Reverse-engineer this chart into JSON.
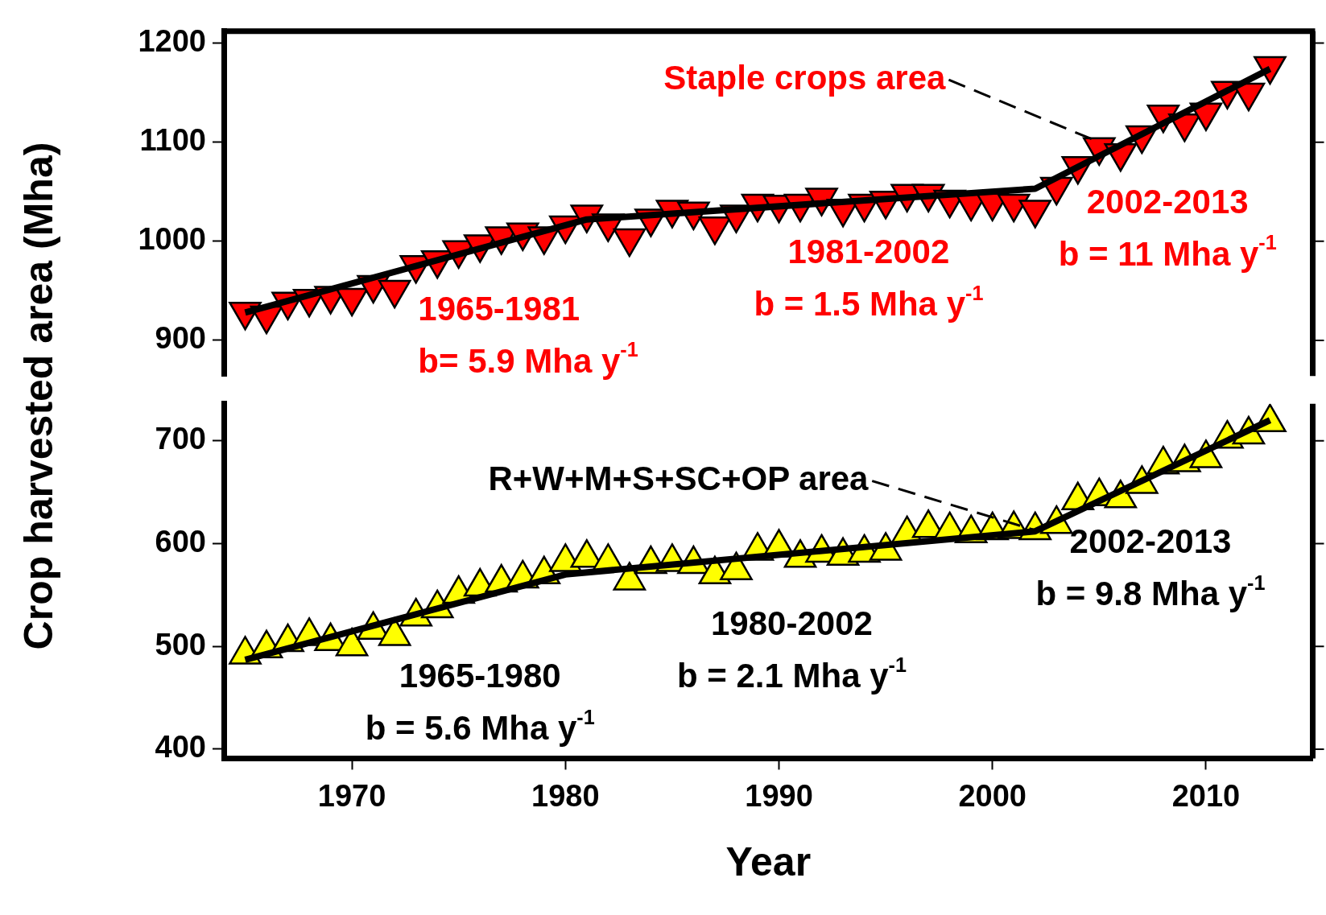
{
  "chart_data": [
    {
      "type": "scatter",
      "ylabel": "Crop harvested area (Mha)",
      "xlim": [
        1964,
        2015
      ],
      "ylim": [
        864,
        1212
      ],
      "yticks": [
        900,
        1000,
        1100,
        1200
      ],
      "tick_labels": "y",
      "grid": false,
      "legend": false,
      "marker": "triangle",
      "x": [
        1965,
        1966,
        1967,
        1968,
        1969,
        1970,
        1971,
        1972,
        1973,
        1974,
        1975,
        1976,
        1977,
        1978,
        1979,
        1980,
        1981,
        1982,
        1983,
        1984,
        1985,
        1986,
        1987,
        1988,
        1989,
        1990,
        1991,
        1992,
        1993,
        1994,
        1995,
        1996,
        1997,
        1998,
        1999,
        2000,
        2001,
        2002,
        2003,
        2004,
        2005,
        2006,
        2007,
        2008,
        2009,
        2010,
        2011,
        2012,
        2013
      ],
      "series": [
        {
          "color": "#ff0000",
          "values": [
            929,
            925,
            939,
            942,
            945,
            943,
            956,
            951,
            976,
            981,
            991,
            997,
            1005,
            1009,
            1005,
            1016,
            1027,
            1018,
            1003,
            1023,
            1032,
            1030,
            1015,
            1027,
            1038,
            1037,
            1038,
            1044,
            1033,
            1038,
            1041,
            1048,
            1048,
            1042,
            1039,
            1039,
            1038,
            1032,
            1055,
            1076,
            1095,
            1089,
            1107,
            1128,
            1119,
            1130,
            1152,
            1150,
            1177
          ]
        },
        {
          "type": "line",
          "color": "#000000",
          "marker": "none",
          "x": [
            1965,
            1981,
            2002,
            2013
          ],
          "values": [
            928,
            1022,
            1053,
            1174
          ]
        }
      ],
      "annotations": [
        {
          "text": "Staple crops area",
          "x": 2005,
          "y": 1100
        },
        "1965-1981\nb= 5.9 Mha y$^{-1}$",
        "1981-2002\nb = 1.5 Mha y$^{-1}$",
        "2002-2013\nb = 11 Mha y$^{-1}$"
      ]
    },
    {
      "type": "scatter",
      "xlabel": "Year",
      "xlim": [
        1964,
        2015
      ],
      "xticks": [
        1970,
        1980,
        1990,
        2000,
        2010
      ],
      "ylim": [
        391,
        736
      ],
      "yticks": [
        400,
        500,
        600,
        700
      ],
      "grid": false,
      "legend": false,
      "marker": "triangle",
      "x": [
        1965,
        1966,
        1967,
        1968,
        1969,
        1970,
        1971,
        1972,
        1973,
        1974,
        1975,
        1976,
        1977,
        1978,
        1979,
        1980,
        1981,
        1982,
        1983,
        1984,
        1985,
        1986,
        1987,
        1988,
        1989,
        1990,
        1991,
        1992,
        1993,
        1994,
        1995,
        1996,
        1997,
        1998,
        1999,
        2000,
        2001,
        2002,
        2003,
        2004,
        2005,
        2006,
        2007,
        2008,
        2009,
        2010,
        2011,
        2012,
        2013
      ],
      "series": [
        {
          "color": "#ffff00",
          "values": [
            492,
            498,
            504,
            510,
            505,
            500,
            516,
            510,
            529,
            537,
            551,
            558,
            562,
            566,
            570,
            582,
            586,
            582,
            564,
            580,
            582,
            580,
            570,
            574,
            593,
            596,
            586,
            591,
            588,
            591,
            593,
            609,
            615,
            613,
            610,
            613,
            614,
            613,
            619,
            642,
            646,
            644,
            658,
            677,
            679,
            683,
            702,
            706,
            718
          ]
        },
        {
          "type": "line",
          "color": "#000000",
          "marker": "none",
          "x": [
            1965,
            1980,
            2002,
            2013
          ],
          "values": [
            487,
            570,
            612,
            720
          ]
        }
      ],
      "annotations": [
        {
          "text": "R+W+M+S+SC+OP area",
          "x": 2002,
          "y": 613
        },
        "1965-1980\nb = 5.6 Mha y$^{-1}$",
        "1980-2002\nb = 2.1 Mha y$^{-1}$",
        "2002-2013\nb = 9.8 Mha y$^{-1}$"
      ]
    }
  ]
}
